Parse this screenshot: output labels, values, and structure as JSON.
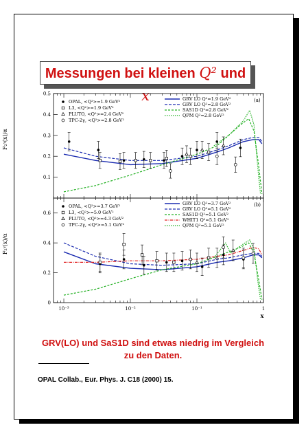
{
  "title": {
    "prefix": "Messungen bei kleinen ",
    "q2": "Q²",
    "und": " und ",
    "x": "x"
  },
  "conclusion": {
    "line1": "GRV(LO) und SaS1D sind etwas niedrig im Vergleich",
    "line2": "zu den Daten."
  },
  "reference": "OPAL Collab., Eur. Phys. J. C18 (2000) 15.",
  "colors": {
    "title": "#d01010",
    "blue": "#1a2bb0",
    "red": "#e02020",
    "green": "#22b022"
  },
  "chart_data": [
    {
      "type": "scatter",
      "panel_label": "(a)",
      "ylabel": "F₂ᵞ(x)/α",
      "xlabel": "x",
      "x_scale": "log",
      "xlim": [
        0.0007,
        1
      ],
      "ylim": [
        0,
        0.5
      ],
      "y_ticks": [
        "0",
        "0.1",
        "0.2",
        "0.3",
        "0.4",
        "0.5"
      ],
      "x_ticks": [
        "10⁻³",
        "10⁻²",
        "10⁻¹",
        "1"
      ],
      "data_series": [
        {
          "name": "OPAL, <Q²>=1.9 GeV²",
          "marker": "filled-circle",
          "points": [
            [
              0.0012,
              0.27
            ],
            [
              0.0033,
              0.23
            ],
            [
              0.008,
              0.18
            ],
            [
              0.016,
              0.185
            ],
            [
              0.032,
              0.18
            ],
            [
              0.06,
              0.2
            ],
            [
              0.1,
              0.23
            ],
            [
              0.2,
              0.27
            ],
            [
              0.45,
              0.24
            ]
          ]
        },
        {
          "name": "L3, <Q²>=1.9 GeV²",
          "marker": "open-star",
          "points": [
            [
              0.0035,
              0.18
            ],
            [
              0.007,
              0.175
            ],
            [
              0.012,
              0.18
            ],
            [
              0.02,
              0.18
            ],
            [
              0.035,
              0.19
            ],
            [
              0.08,
              0.2
            ],
            [
              0.15,
              0.22
            ]
          ]
        },
        {
          "name": "PLUTO, <Q²>=2.4 GeV²",
          "marker": "open-triangle",
          "points": [
            [
              0.07,
              0.21
            ],
            [
              0.12,
              0.23
            ],
            [
              0.25,
              0.25
            ]
          ]
        },
        {
          "name": "TPC-2γ, <Q²>=2.8 GeV²",
          "marker": "open-circle",
          "points": [
            [
              0.04,
              0.13
            ],
            [
              0.2,
              0.2
            ],
            [
              0.38,
              0.16
            ]
          ]
        }
      ],
      "curve_series": [
        {
          "name": "GRV LO Q²=1.9 GeV²",
          "style": "solid-blue",
          "points": [
            [
              0.001,
              0.21
            ],
            [
              0.003,
              0.18
            ],
            [
              0.01,
              0.16
            ],
            [
              0.03,
              0.165
            ],
            [
              0.1,
              0.19
            ],
            [
              0.2,
              0.22
            ],
            [
              0.3,
              0.24
            ],
            [
              0.5,
              0.27
            ],
            [
              0.7,
              0.28
            ],
            [
              0.85,
              0.28
            ],
            [
              0.95,
              0.26
            ]
          ]
        },
        {
          "name": "GRV LO Q²=2.8 GeV²",
          "style": "dashed-blue",
          "points": [
            [
              0.001,
              0.24
            ],
            [
              0.003,
              0.2
            ],
            [
              0.01,
              0.18
            ],
            [
              0.03,
              0.18
            ],
            [
              0.1,
              0.2
            ],
            [
              0.2,
              0.23
            ],
            [
              0.3,
              0.25
            ],
            [
              0.5,
              0.28
            ],
            [
              0.7,
              0.29
            ],
            [
              0.85,
              0.29
            ],
            [
              0.95,
              0.27
            ]
          ]
        },
        {
          "name": "SAS1D Q²=2.8 GeV²",
          "style": "dashed-green",
          "points": [
            [
              0.001,
              0.03
            ],
            [
              0.003,
              0.06
            ],
            [
              0.01,
              0.11
            ],
            [
              0.03,
              0.16
            ],
            [
              0.1,
              0.21
            ],
            [
              0.2,
              0.25
            ],
            [
              0.3,
              0.3
            ],
            [
              0.45,
              0.35
            ],
            [
              0.6,
              0.38
            ],
            [
              0.72,
              0.32
            ],
            [
              0.85,
              0.15
            ],
            [
              0.95,
              0.02
            ]
          ]
        },
        {
          "name": "QPM Q²=2.8 GeV²",
          "style": "dotted-green",
          "points": [
            [
              0.18,
              0.25
            ],
            [
              0.3,
              0.3
            ],
            [
              0.5,
              0.37
            ],
            [
              0.62,
              0.42
            ],
            [
              0.72,
              0.35
            ],
            [
              0.82,
              0.15
            ],
            [
              0.9,
              0.02
            ]
          ]
        }
      ]
    },
    {
      "type": "scatter",
      "panel_label": "(b)",
      "ylabel": "F₂ᵞ(x)/α",
      "xlabel": "x",
      "x_scale": "log",
      "xlim": [
        0.0007,
        1
      ],
      "ylim": [
        0,
        0.7
      ],
      "y_ticks": [
        "0",
        "0.2",
        "0.4",
        "0.6"
      ],
      "x_ticks": [
        "10⁻³",
        "10⁻²",
        "10⁻¹",
        "1"
      ],
      "data_series": [
        {
          "name": "OPAL, <Q²>=3.7 GeV²",
          "marker": "filled-circle",
          "points": [
            [
              0.0035,
              0.26
            ],
            [
              0.008,
              0.29
            ],
            [
              0.016,
              0.25
            ],
            [
              0.035,
              0.27
            ],
            [
              0.06,
              0.28
            ],
            [
              0.12,
              0.24
            ],
            [
              0.25,
              0.32
            ],
            [
              0.5,
              0.29
            ]
          ]
        },
        {
          "name": "L3, <Q²>=5.0 GeV²",
          "marker": "open-star",
          "points": [
            [
              0.0035,
              0.27
            ],
            [
              0.008,
              0.39
            ],
            [
              0.015,
              0.32
            ],
            [
              0.025,
              0.28
            ],
            [
              0.045,
              0.27
            ],
            [
              0.08,
              0.29
            ],
            [
              0.15,
              0.3
            ]
          ]
        },
        {
          "name": "PLUTO, <Q²>=4.3 GeV²",
          "marker": "open-triangle",
          "points": [
            [
              0.1,
              0.27
            ],
            [
              0.2,
              0.3
            ],
            [
              0.35,
              0.35
            ]
          ]
        },
        {
          "name": "TPC-2γ, <Q²>=5.1 GeV²",
          "marker": "open-circle",
          "points": [
            [
              0.25,
              0.37
            ],
            [
              0.5,
              0.3
            ],
            [
              0.7,
              0.33
            ]
          ]
        }
      ],
      "curve_series": [
        {
          "name": "GRV LO Q²=3.7 GeV²",
          "style": "solid-blue",
          "points": [
            [
              0.001,
              0.34
            ],
            [
              0.003,
              0.26
            ],
            [
              0.01,
              0.23
            ],
            [
              0.03,
              0.22
            ],
            [
              0.1,
              0.24
            ],
            [
              0.2,
              0.27
            ],
            [
              0.3,
              0.28
            ],
            [
              0.5,
              0.3
            ],
            [
              0.7,
              0.32
            ],
            [
              0.85,
              0.32
            ],
            [
              0.95,
              0.3
            ]
          ]
        },
        {
          "name": "GRV LO Q²=5.1 GeV²",
          "style": "dashed-blue",
          "points": [
            [
              0.001,
              0.4
            ],
            [
              0.003,
              0.31
            ],
            [
              0.01,
              0.26
            ],
            [
              0.03,
              0.25
            ],
            [
              0.1,
              0.26
            ],
            [
              0.2,
              0.29
            ],
            [
              0.3,
              0.3
            ],
            [
              0.5,
              0.32
            ],
            [
              0.7,
              0.33
            ],
            [
              0.85,
              0.33
            ],
            [
              0.95,
              0.31
            ]
          ]
        },
        {
          "name": "SAS1D Q²=5.1 GeV²",
          "style": "dashed-green",
          "points": [
            [
              0.001,
              0.05
            ],
            [
              0.003,
              0.09
            ],
            [
              0.01,
              0.16
            ],
            [
              0.03,
              0.22
            ],
            [
              0.1,
              0.26
            ],
            [
              0.2,
              0.31
            ],
            [
              0.3,
              0.34
            ],
            [
              0.45,
              0.37
            ],
            [
              0.6,
              0.4
            ],
            [
              0.72,
              0.33
            ],
            [
              0.85,
              0.15
            ],
            [
              0.95,
              0.02
            ]
          ]
        },
        {
          "name": "WHIT1 Q²=5.1 GeV²",
          "style": "dashdot-red",
          "points": [
            [
              0.001,
              0.27
            ],
            [
              0.003,
              0.27
            ],
            [
              0.01,
              0.28
            ],
            [
              0.03,
              0.28
            ],
            [
              0.1,
              0.29
            ],
            [
              0.2,
              0.31
            ],
            [
              0.3,
              0.32
            ],
            [
              0.5,
              0.35
            ],
            [
              0.7,
              0.37
            ],
            [
              0.85,
              0.36
            ],
            [
              0.95,
              0.32
            ]
          ]
        },
        {
          "name": "QPM Q²=5.1 GeV²",
          "style": "dotted-green",
          "points": [
            [
              0.18,
              0.3
            ],
            [
              0.27,
              0.4
            ],
            [
              0.32,
              0.33
            ],
            [
              0.45,
              0.38
            ],
            [
              0.62,
              0.42
            ],
            [
              0.72,
              0.36
            ],
            [
              0.82,
              0.15
            ],
            [
              0.9,
              0.02
            ]
          ]
        }
      ]
    }
  ]
}
